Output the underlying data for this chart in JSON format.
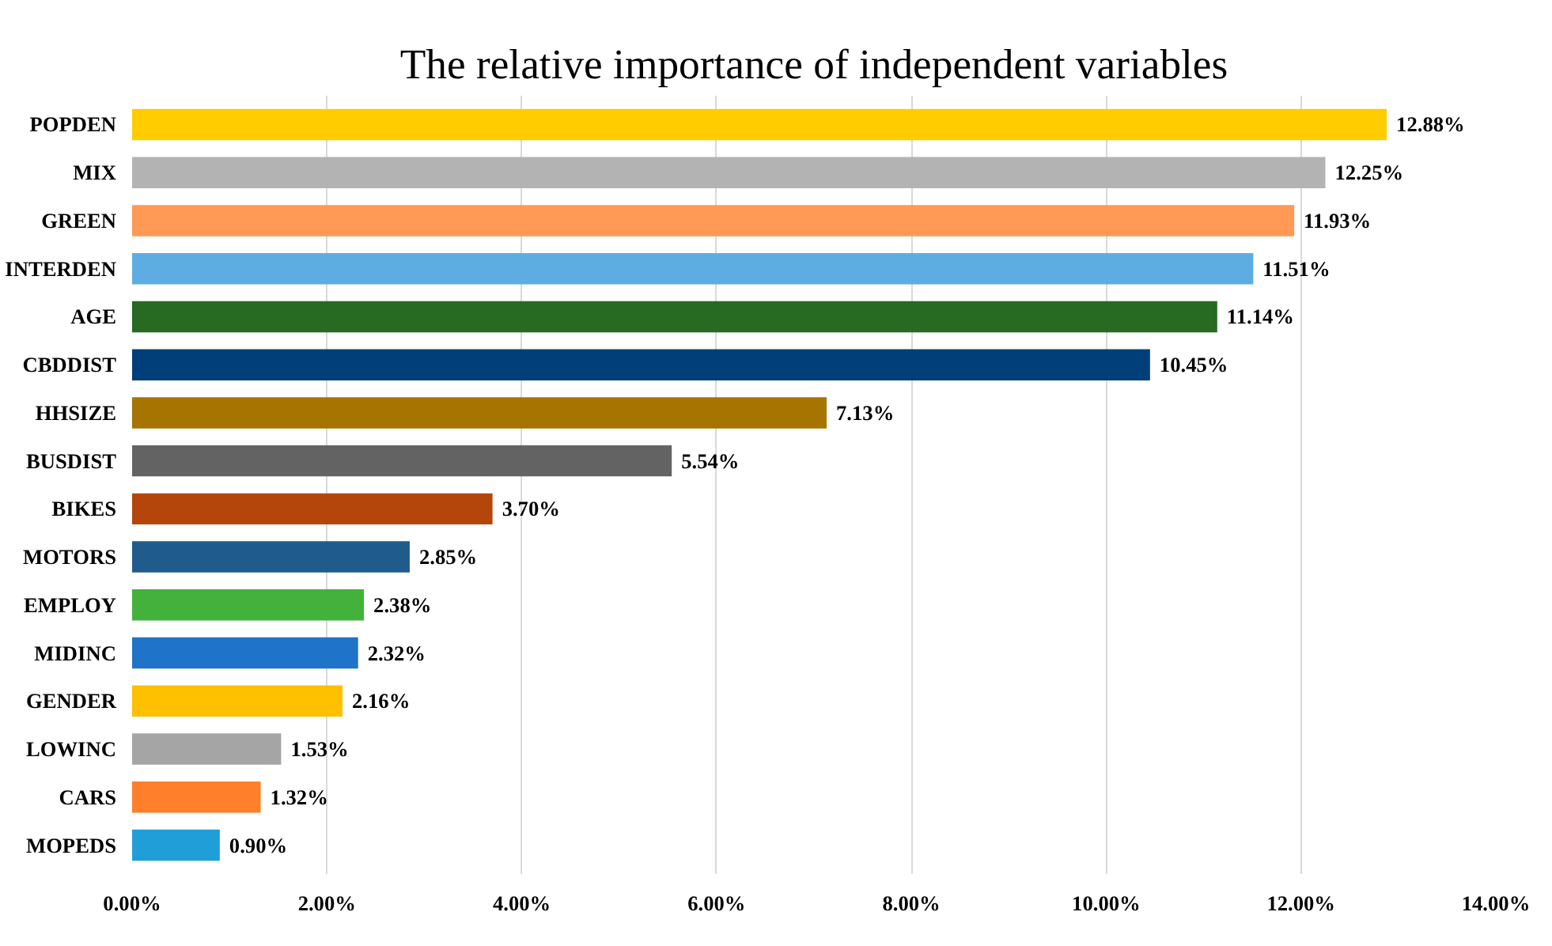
{
  "chart_data": {
    "type": "bar",
    "orientation": "horizontal",
    "title": "The relative importance of independent variables",
    "categories": [
      "POPDEN",
      "MIX",
      "GREEN",
      "INTERDEN",
      "AGE",
      "CBDDIST",
      "HHSIZE",
      "BUSDIST",
      "BIKES",
      "MOTORS",
      "EMPLOY",
      "MIDINC",
      "GENDER",
      "LOWINC",
      "CARS",
      "MOPEDS"
    ],
    "values": [
      12.88,
      12.25,
      11.93,
      11.51,
      11.14,
      10.45,
      7.13,
      5.54,
      3.7,
      2.85,
      2.38,
      2.32,
      2.16,
      1.53,
      1.32,
      0.9
    ],
    "value_labels": [
      "12.88%",
      "12.25%",
      "11.93%",
      "11.51%",
      "11.14%",
      "10.45%",
      "7.13%",
      "5.54%",
      "3.70%",
      "2.85%",
      "2.38%",
      "2.32%",
      "2.16%",
      "1.53%",
      "1.32%",
      "0.90%"
    ],
    "colors": [
      "#ffcc00",
      "#b3b3b3",
      "#ff9955",
      "#5dade2",
      "#276a22",
      "#003f7a",
      "#a67400",
      "#636363",
      "#b5460b",
      "#1f5c8c",
      "#43b23c",
      "#1f73c8",
      "#ffc000",
      "#a5a5a5",
      "#ff7f2a",
      "#1f9ed8"
    ],
    "xlim": [
      0,
      14
    ],
    "xticks": [
      {
        "value": 0,
        "label": "0.00%"
      },
      {
        "value": 2,
        "label": "2.00%"
      },
      {
        "value": 4,
        "label": "4.00%"
      },
      {
        "value": 6,
        "label": "6.00%"
      },
      {
        "value": 8,
        "label": "8.00%"
      },
      {
        "value": 10,
        "label": "10.00%"
      },
      {
        "value": 12,
        "label": "12.00%"
      },
      {
        "value": 14,
        "label": "14.00%"
      }
    ],
    "grid": "x"
  }
}
